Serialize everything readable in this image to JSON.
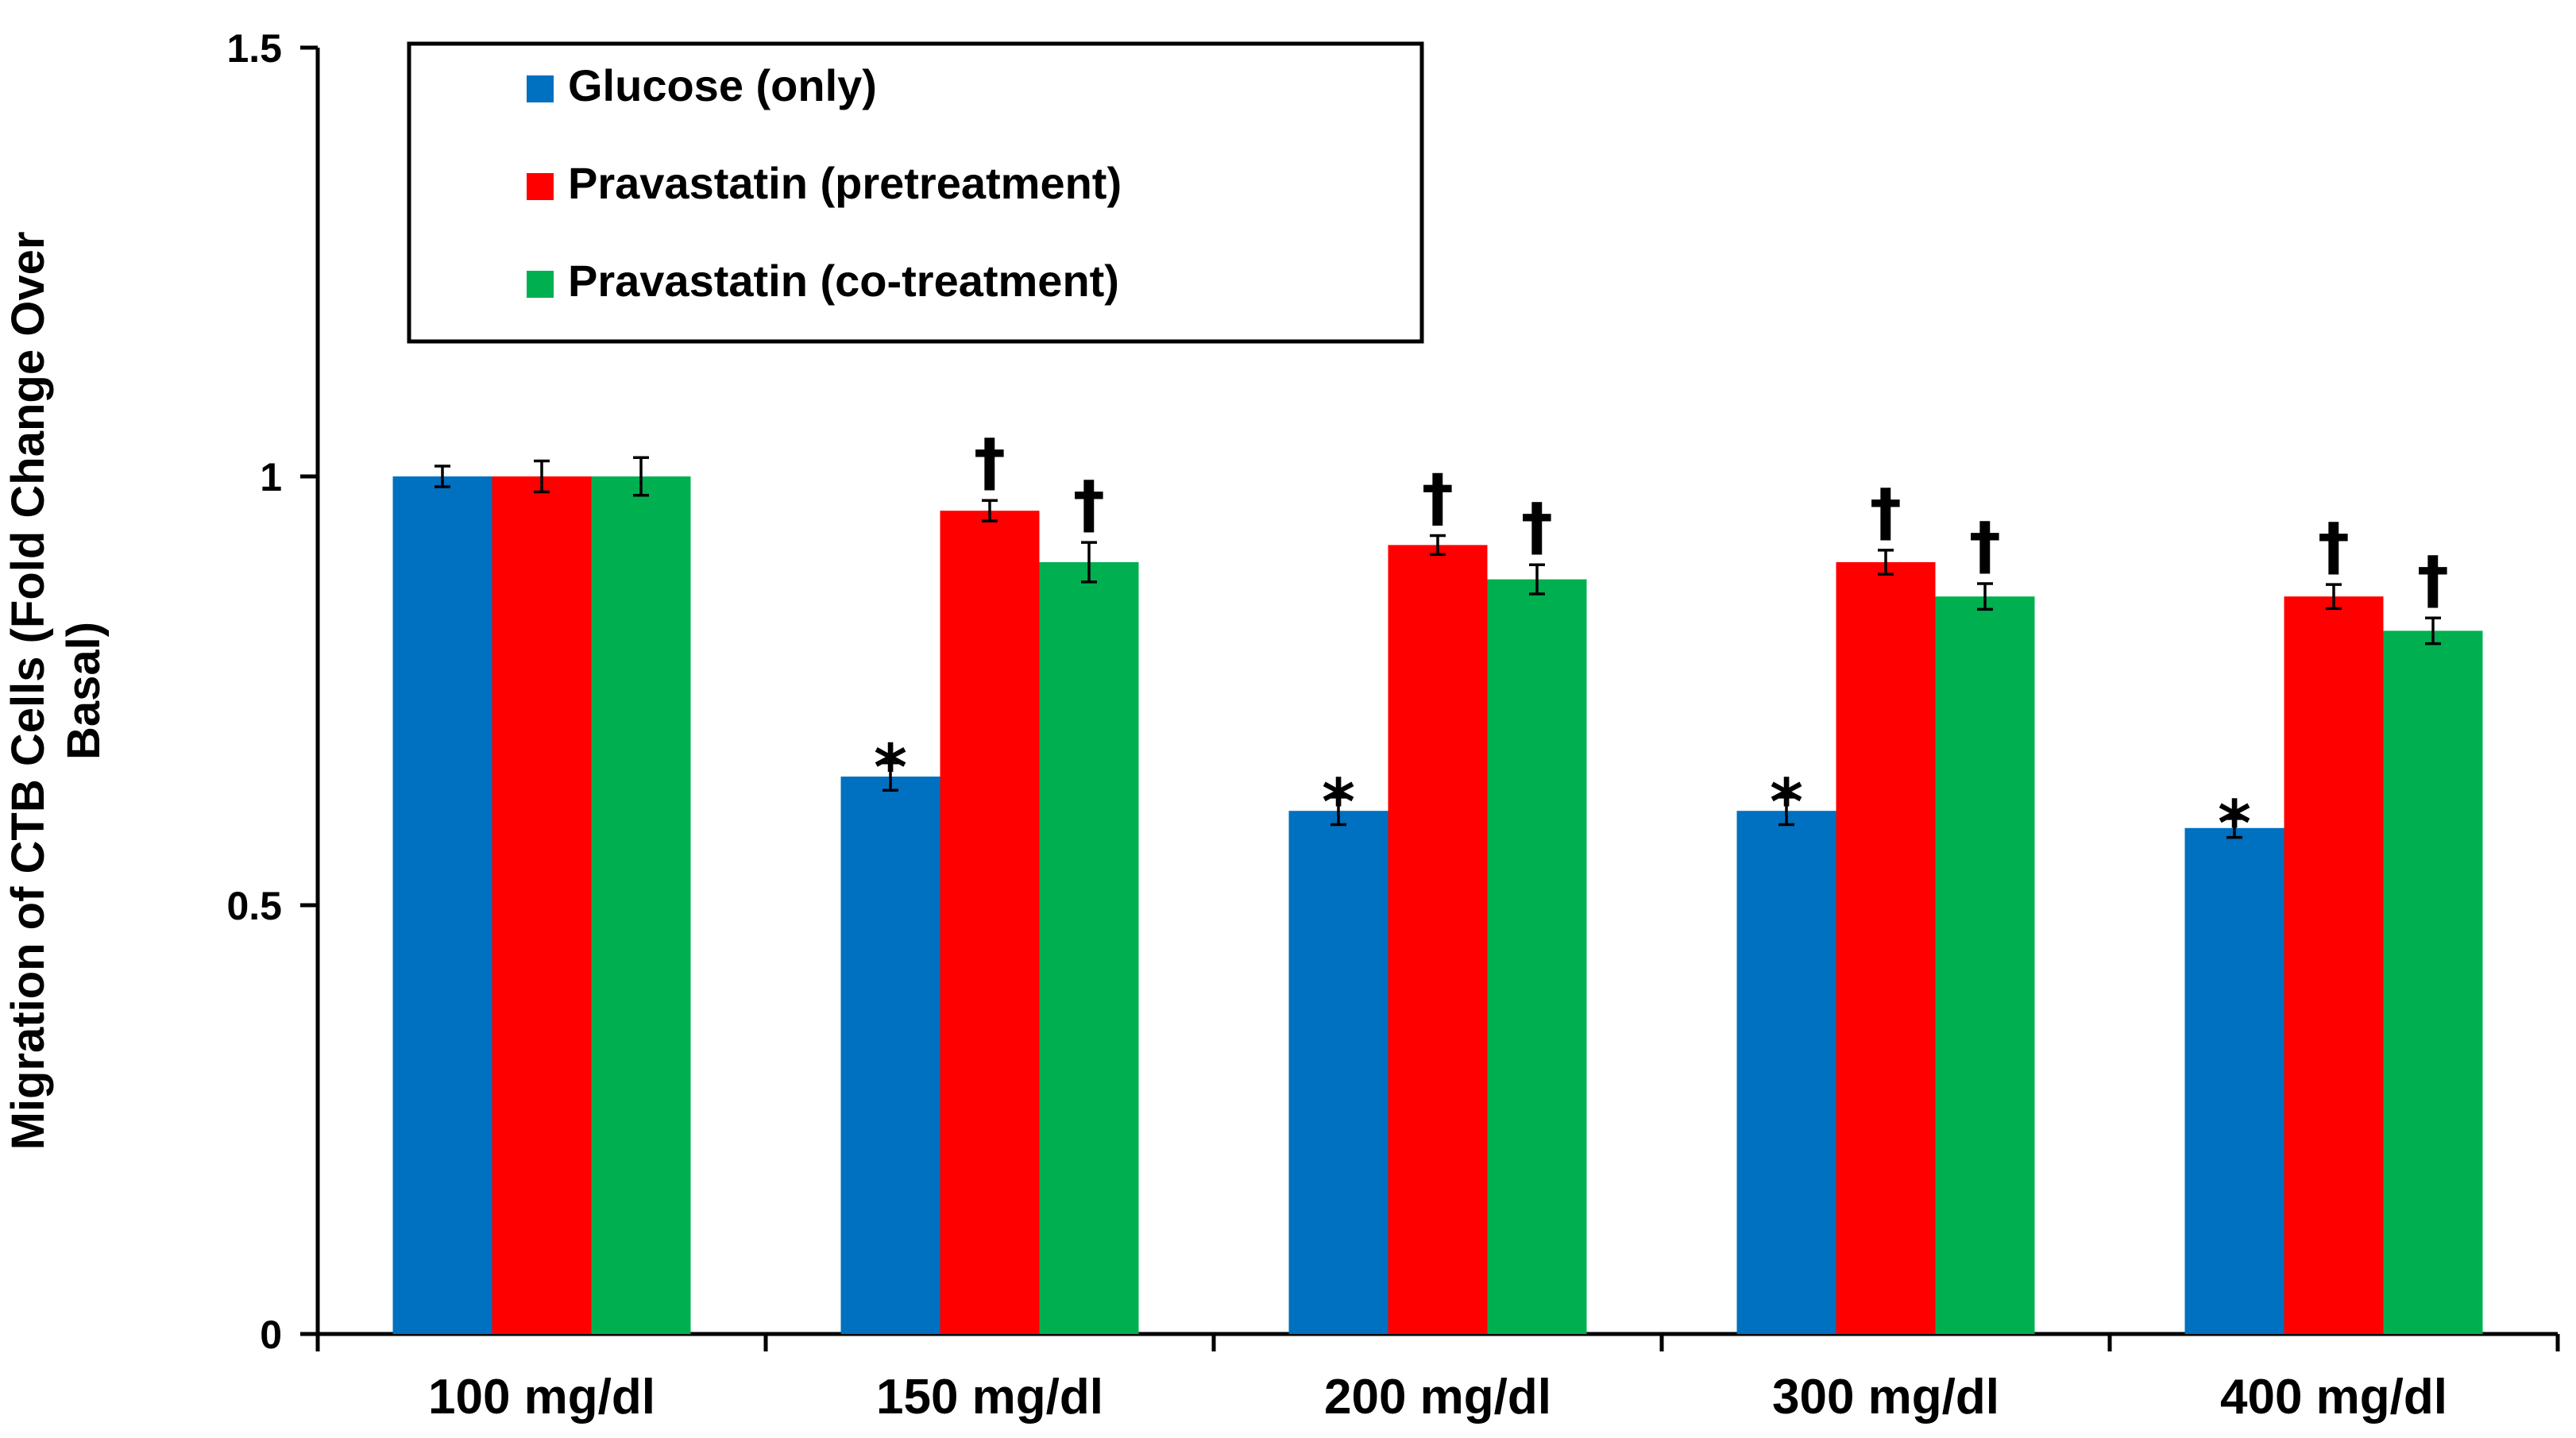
{
  "chart_data": {
    "type": "bar",
    "title": "",
    "xlabel": "",
    "ylabel": "Migration of CTB Cells (Fold Change Over Basal)",
    "ylabel_lines": [
      "Migration of CTB Cells (Fold Change Over",
      "Basal)"
    ],
    "ylim": [
      0,
      1.5
    ],
    "yticks": [
      0,
      0.5,
      1,
      1.5
    ],
    "ytick_labels": [
      "0",
      "0.5",
      "1",
      "1.5"
    ],
    "grid": false,
    "legend_position": "top-left",
    "categories": [
      "100 mg/dl",
      "150 mg/dl",
      "200 mg/dl",
      "300 mg/dl",
      "400 mg/dl"
    ],
    "series": [
      {
        "name": "Glucose (only)",
        "color": "#0070c0",
        "values": [
          1.0,
          0.65,
          0.61,
          0.61,
          0.59
        ],
        "errors": [
          0.012,
          0.016,
          0.016,
          0.016,
          0.011
        ],
        "markers": [
          "",
          "*",
          "*",
          "*",
          "*"
        ]
      },
      {
        "name": "Pravastatin (pretreatment)",
        "color": "#ff0000",
        "values": [
          1.0,
          0.96,
          0.92,
          0.9,
          0.86
        ],
        "errors": [
          0.018,
          0.012,
          0.011,
          0.014,
          0.014
        ],
        "markers": [
          "",
          "†",
          "†",
          "†",
          "†"
        ]
      },
      {
        "name": "Pravastatin (co-treatment)",
        "color": "#00b050",
        "values": [
          1.0,
          0.9,
          0.88,
          0.86,
          0.82
        ],
        "errors": [
          0.022,
          0.023,
          0.017,
          0.015,
          0.015
        ],
        "markers": [
          "",
          "†",
          "†",
          "†",
          "†"
        ]
      }
    ]
  }
}
